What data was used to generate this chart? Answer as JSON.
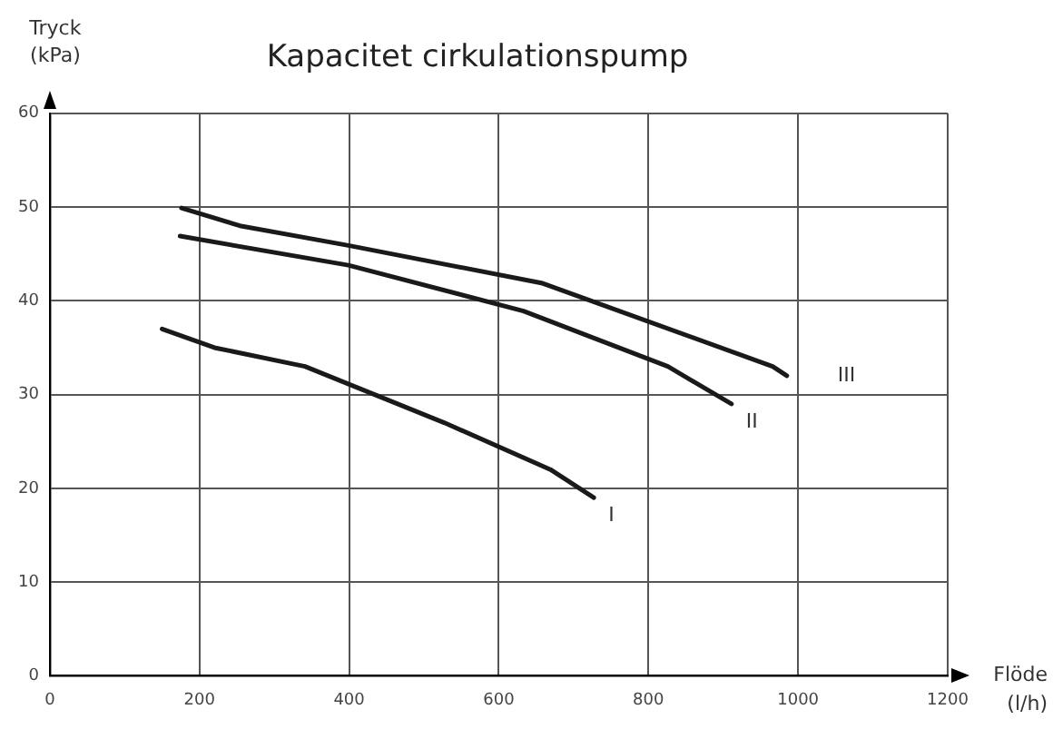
{
  "chart_data": {
    "type": "line",
    "title": "Kapacitet cirkulationspump",
    "xlabel": "Flöde (l/h)",
    "ylabel": "Tryck (kPa)",
    "xlim": [
      0,
      1200
    ],
    "xticks": [
      0,
      200,
      400,
      600,
      800,
      1000,
      1200
    ],
    "ylim": [
      0,
      60
    ],
    "yticks": [
      0,
      10,
      20,
      30,
      40,
      50,
      60
    ],
    "grid": true,
    "legend": false,
    "marker": "none",
    "line_style": "solid",
    "series": [
      {
        "name": "I",
        "color": "#1a1a1a",
        "x": [
          150,
          220,
          341,
          527,
          669,
          727
        ],
        "values": [
          37,
          35,
          33,
          27,
          22,
          19
        ]
      },
      {
        "name": "II",
        "color": "#1a1a1a",
        "x": [
          174,
          399,
          633,
          826,
          911
        ],
        "values": [
          46.9,
          43.8,
          38.9,
          33,
          29
        ]
      },
      {
        "name": "III",
        "color": "#1a1a1a",
        "x": [
          176,
          254,
          399,
          657,
          966,
          985
        ],
        "values": [
          49.9,
          48,
          45.9,
          41.9,
          33,
          32
        ]
      }
    ]
  }
}
